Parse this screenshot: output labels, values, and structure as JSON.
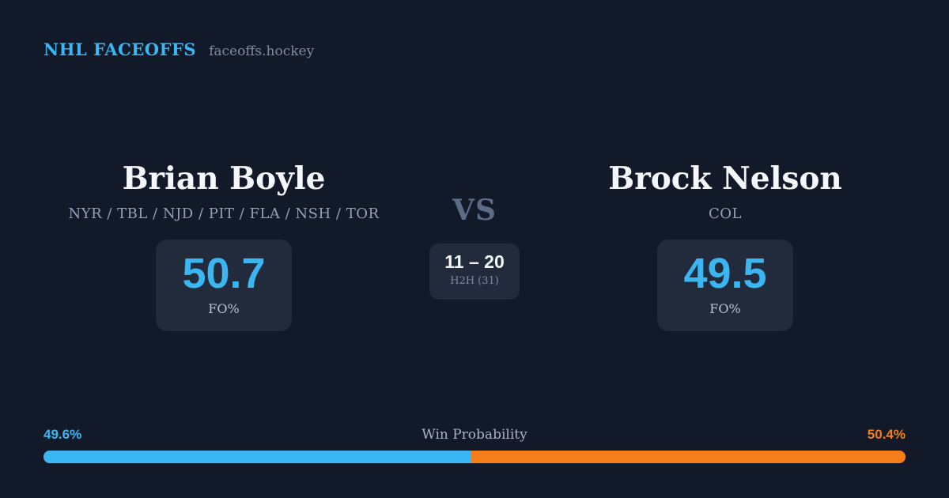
{
  "page": {
    "background_color": "#121a2a",
    "panel_color": "#212b3c"
  },
  "header": {
    "brand": "NHL FACEOFFS",
    "brand_color": "#3ab7f2",
    "site": "faceoffs.hockey"
  },
  "players": {
    "left": {
      "name": "Brian Boyle",
      "teams": "NYR / TBL / NJD / PIT / FLA / NSH / TOR",
      "fo_pct": "50.7",
      "fo_label": "FO%"
    },
    "right": {
      "name": "Brock Nelson",
      "teams": "COL",
      "fo_pct": "49.5",
      "fo_label": "FO%"
    }
  },
  "matchup": {
    "vs_label": "VS",
    "h2h_score": "11 – 20",
    "h2h_label": "H2H (31)"
  },
  "win_probability": {
    "label": "Win Probability",
    "left_pct": "49.6%",
    "right_pct": "50.4%",
    "left_value": 49.6,
    "right_value": 50.4,
    "left_color": "#3ab7f2",
    "right_color": "#f57d1a"
  }
}
